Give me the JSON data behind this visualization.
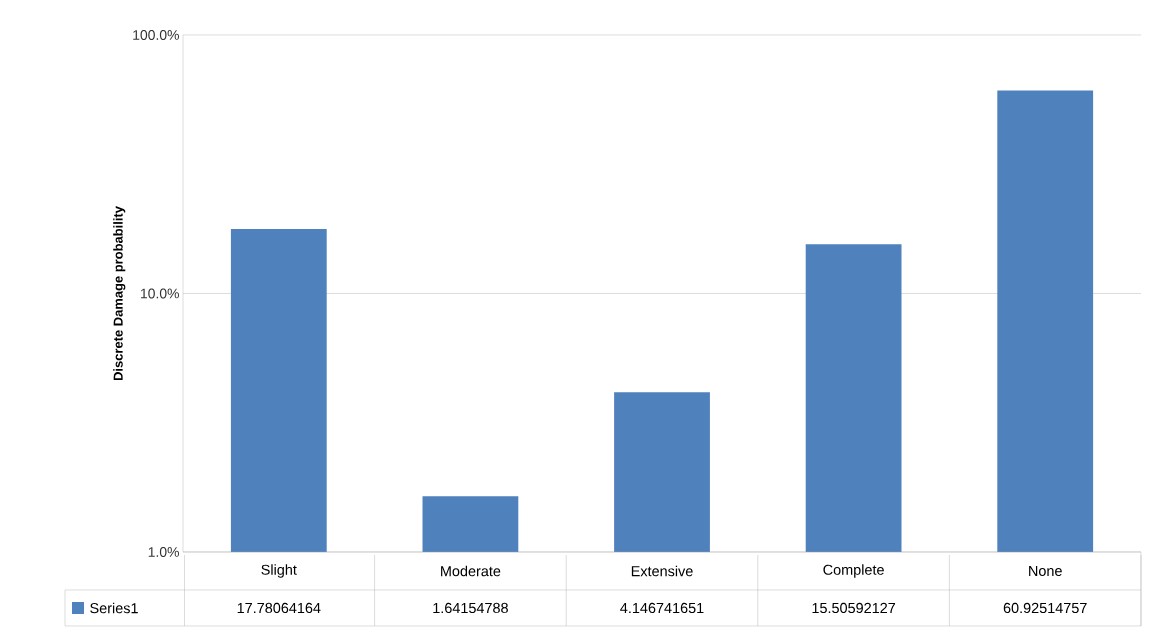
{
  "chart_data": {
    "type": "bar",
    "ylabel": "Discrete Damage probability",
    "categories": [
      "Slight",
      "Moderate",
      "Extensive",
      "Complete",
      "None"
    ],
    "series": [
      {
        "name": "Series1",
        "color": "#4f81bd",
        "values": [
          17.78064164,
          1.64154788,
          4.146741651,
          15.50592127,
          60.92514757
        ]
      }
    ],
    "log": "y",
    "ylim": [
      1,
      100
    ],
    "yticks": [
      {
        "value": 1,
        "label": "1.0%"
      },
      {
        "value": 10,
        "label": "10.0%"
      },
      {
        "value": 100,
        "label": "100.0%"
      }
    ],
    "grid": "y",
    "legend": "bottom",
    "data_labels": true
  }
}
